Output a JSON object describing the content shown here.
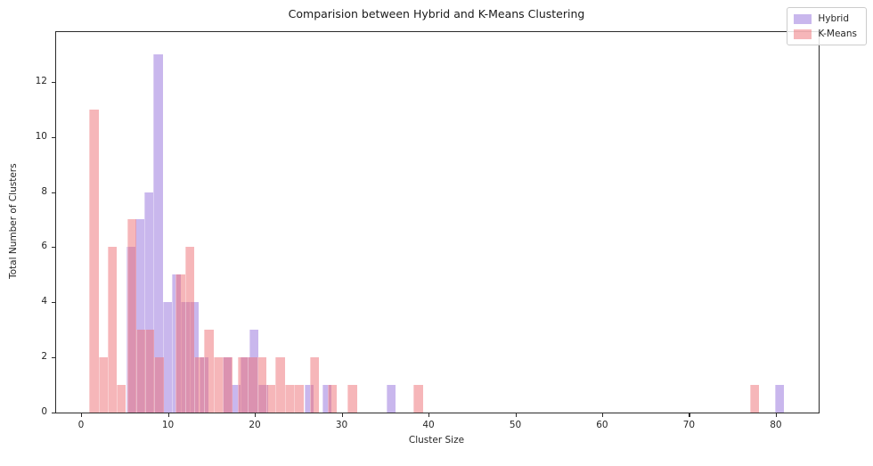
{
  "figure": {
    "title": "Comparision between Hybrid and K-Means Clustering"
  },
  "chart_data": {
    "type": "bar",
    "subtype": "overlapping-histogram",
    "title": "Comparision between Hybrid and K-Means Clustering",
    "xlabel": "Cluster Size",
    "ylabel": "Total Number of Clusters",
    "xlim": [
      -2.87,
      84.93
    ],
    "ylim": [
      0,
      13.8
    ],
    "x_ticks": [
      0,
      10,
      20,
      30,
      40,
      50,
      60,
      70,
      80
    ],
    "y_ticks": [
      0,
      2,
      4,
      6,
      8,
      10,
      12
    ],
    "grid": false,
    "legend": {
      "position": "upper right",
      "entries": [
        {
          "label": "Hybrid",
          "color": "rgba(147,112,219,0.5)"
        },
        {
          "label": "K-Means",
          "color": "rgba(237,110,116,0.5)"
        }
      ]
    },
    "series": [
      {
        "name": "Hybrid",
        "fill": "rgba(147,112,219,0.5)",
        "bar_width": 1.05,
        "bars": [
          [
            5.2,
            6
          ],
          [
            6.25,
            7
          ],
          [
            7.3,
            8
          ],
          [
            8.35,
            13
          ],
          [
            9.4,
            4
          ],
          [
            10.45,
            5
          ],
          [
            11.5,
            4
          ],
          [
            12.55,
            4
          ],
          [
            13.6,
            2
          ],
          [
            16.3,
            2
          ],
          [
            17.35,
            1
          ],
          [
            18.4,
            2
          ],
          [
            19.4,
            3
          ],
          [
            20.45,
            1
          ],
          [
            25.7,
            1
          ],
          [
            27.8,
            1
          ],
          [
            35.2,
            1
          ],
          [
            79.9,
            1
          ]
        ]
      },
      {
        "name": "K-Means",
        "fill": "rgba(237,110,116,0.5)",
        "bar_width": 1.07,
        "bars": [
          [
            0.95,
            11
          ],
          [
            2.0,
            2
          ],
          [
            3.05,
            6
          ],
          [
            4.1,
            1
          ],
          [
            5.3,
            7
          ],
          [
            6.35,
            3
          ],
          [
            7.4,
            3
          ],
          [
            8.45,
            2
          ],
          [
            10.9,
            5
          ],
          [
            11.97,
            6
          ],
          [
            13.05,
            2
          ],
          [
            14.2,
            3
          ],
          [
            15.27,
            2
          ],
          [
            16.35,
            2
          ],
          [
            18.1,
            2
          ],
          [
            19.2,
            2
          ],
          [
            20.3,
            2
          ],
          [
            21.35,
            1
          ],
          [
            22.4,
            2
          ],
          [
            23.5,
            1
          ],
          [
            24.55,
            1
          ],
          [
            26.35,
            2
          ],
          [
            28.4,
            1
          ],
          [
            30.7,
            1
          ],
          [
            38.3,
            1
          ],
          [
            77.0,
            1
          ]
        ]
      }
    ]
  }
}
